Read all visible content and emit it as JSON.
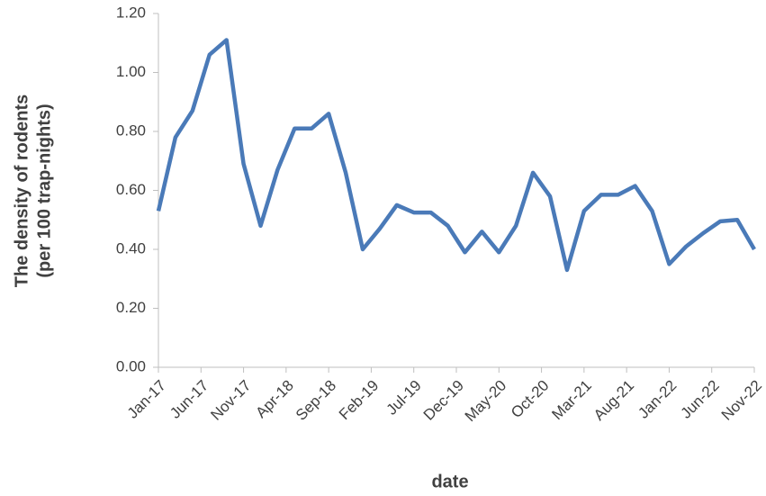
{
  "chart_data": {
    "type": "line",
    "x_title": "date",
    "y_title_lines": [
      "The density of rodents",
      "(per 100 trap-nights)"
    ],
    "x": [
      0,
      2,
      4,
      6,
      8,
      10,
      12,
      14,
      16,
      18,
      20,
      22,
      24,
      26,
      28,
      30,
      32,
      34,
      36,
      38,
      40,
      42,
      44,
      46,
      48,
      50,
      52,
      54,
      56,
      58,
      60,
      62,
      64,
      66,
      68,
      70
    ],
    "series": [
      {
        "color": "#4a7ab8",
        "values": [
          0.53,
          0.78,
          0.87,
          1.06,
          1.11,
          0.69,
          0.48,
          0.67,
          0.81,
          0.81,
          0.86,
          0.66,
          0.4,
          0.47,
          0.55,
          0.525,
          0.525,
          0.48,
          0.39,
          0.46,
          0.39,
          0.48,
          0.66,
          0.58,
          0.33,
          0.53,
          0.585,
          0.585,
          0.615,
          0.53,
          0.35,
          0.41,
          0.455,
          0.495,
          0.5,
          0.4
        ]
      }
    ],
    "xlim": [
      0,
      70
    ],
    "xticks": [
      {
        "value": 0,
        "label": "Jan-17"
      },
      {
        "value": 5,
        "label": "Jun-17"
      },
      {
        "value": 10,
        "label": "Nov-17"
      },
      {
        "value": 15,
        "label": "Apr-18"
      },
      {
        "value": 20,
        "label": "Sep-18"
      },
      {
        "value": 25,
        "label": "Feb-19"
      },
      {
        "value": 30,
        "label": "Jul-19"
      },
      {
        "value": 35,
        "label": "Dec-19"
      },
      {
        "value": 40,
        "label": "May-20"
      },
      {
        "value": 45,
        "label": "Oct-20"
      },
      {
        "value": 50,
        "label": "Mar-21"
      },
      {
        "value": 55,
        "label": "Aug-21"
      },
      {
        "value": 60,
        "label": "Jan-22"
      },
      {
        "value": 65,
        "label": "Jun-22"
      },
      {
        "value": 70,
        "label": "Nov-22"
      }
    ],
    "ylim": [
      0,
      1.2
    ],
    "yticks": [
      {
        "value": 0,
        "label": "0.00"
      },
      {
        "value": 0.2,
        "label": "0.20"
      },
      {
        "value": 0.4,
        "label": "0.40"
      },
      {
        "value": 0.6,
        "label": "0.60"
      },
      {
        "value": 0.8,
        "label": "0.80"
      },
      {
        "value": 1.0,
        "label": "1.00"
      },
      {
        "value": 1.2,
        "label": "1.20"
      }
    ]
  }
}
